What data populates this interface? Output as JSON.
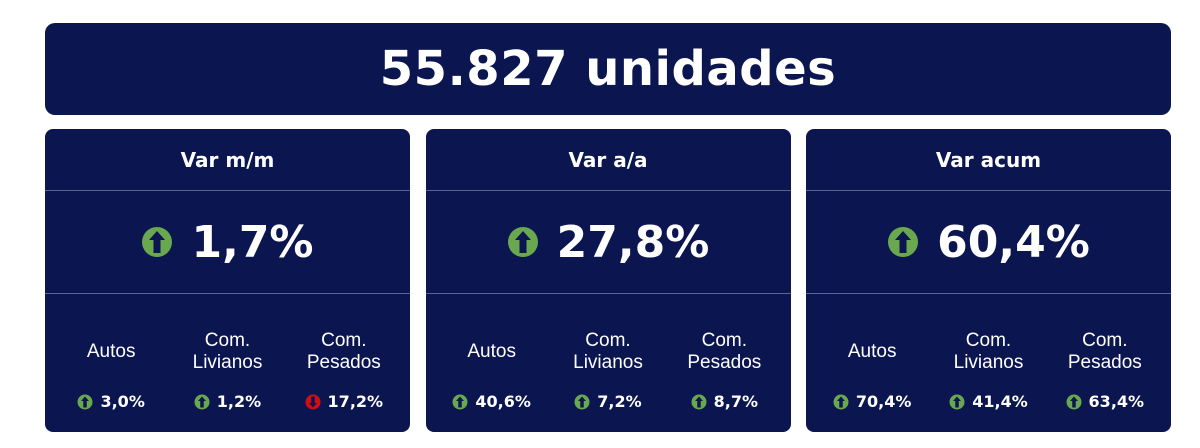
{
  "header": {
    "total": "55.827 unidades"
  },
  "colors": {
    "background": "#0b154f",
    "up": "#6aa84f",
    "down": "#cc1111"
  },
  "cards": [
    {
      "title": "Var m/m",
      "main": {
        "value": "1,7%",
        "icon": "arrow-up-icon"
      },
      "subs": [
        {
          "label": "Autos",
          "value": "3,0%",
          "icon": "arrow-up-icon"
        },
        {
          "label": "Com.\nLivianos",
          "value": "1,2%",
          "icon": "arrow-up-icon"
        },
        {
          "label": "Com.\nPesados",
          "value": "17,2%",
          "icon": "arrow-down-icon"
        }
      ]
    },
    {
      "title": "Var a/a",
      "main": {
        "value": "27,8%",
        "icon": "arrow-up-icon"
      },
      "subs": [
        {
          "label": "Autos",
          "value": "40,6%",
          "icon": "arrow-up-icon"
        },
        {
          "label": "Com.\nLivianos",
          "value": "7,2%",
          "icon": "arrow-up-icon"
        },
        {
          "label": "Com.\nPesados",
          "value": "8,7%",
          "icon": "arrow-up-icon"
        }
      ]
    },
    {
      "title": "Var acum",
      "main": {
        "value": "60,4%",
        "icon": "arrow-up-icon"
      },
      "subs": [
        {
          "label": "Autos",
          "value": "70,4%",
          "icon": "arrow-up-icon"
        },
        {
          "label": "Com.\nLivianos",
          "value": "41,4%",
          "icon": "arrow-up-icon"
        },
        {
          "label": "Com.\nPesados",
          "value": "63,4%",
          "icon": "arrow-up-icon"
        }
      ]
    }
  ]
}
